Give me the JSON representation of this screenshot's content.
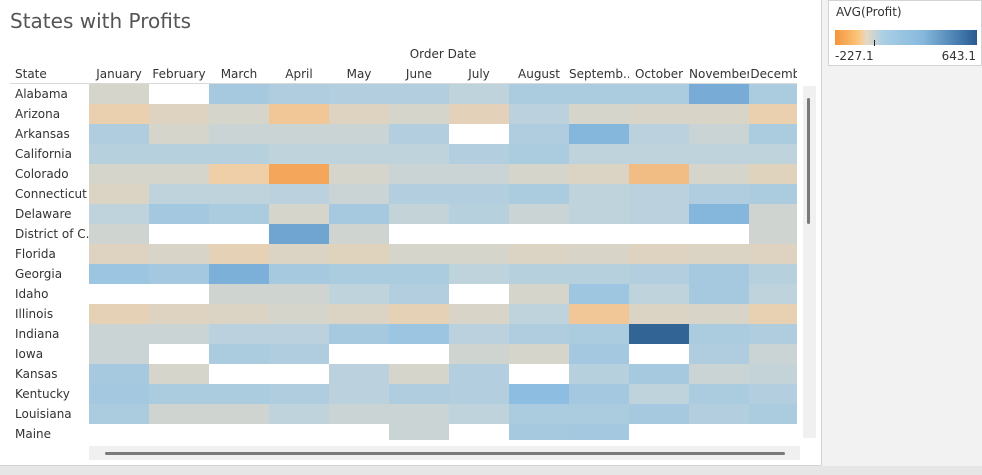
{
  "title": "States with Profits",
  "column_group_label": "Order Date",
  "row_header": "State",
  "legend": {
    "title": "AVG(Profit)",
    "min_label": "-227.1",
    "max_label": "643.1",
    "min": -227.1,
    "max": 643.1,
    "gradient_colors": [
      "#f5943a",
      "#fbc47a",
      "#e8d8c2",
      "#a9cfe6",
      "#86b8dc",
      "#3e75aa",
      "#2a5a8c"
    ]
  },
  "chart_data": {
    "type": "heatmap",
    "title": "States with Profits",
    "x_group_label": "Order Date",
    "y_label": "State",
    "value_label": "AVG(Profit)",
    "color_range": [
      -227.1,
      643.1
    ],
    "months": [
      "January",
      "February",
      "March",
      "April",
      "May",
      "June",
      "July",
      "August",
      "Septemb..",
      "October",
      "November",
      "Decembe"
    ],
    "states": [
      "Alabama",
      "Arizona",
      "Arkansas",
      "California",
      "Colorado",
      "Connecticut",
      "Delaware",
      "District of C..",
      "Florida",
      "Georgia",
      "Idaho",
      "Illinois",
      "Indiana",
      "Iowa",
      "Kansas",
      "Kentucky",
      "Louisiana",
      "Maine"
    ],
    "values": [
      [
        0,
        null,
        100,
        80,
        70,
        70,
        40,
        90,
        90,
        90,
        250,
        90
      ],
      [
        -80,
        -30,
        0,
        -120,
        -30,
        0,
        -50,
        50,
        0,
        -10,
        -10,
        -80
      ],
      [
        80,
        0,
        20,
        20,
        20,
        70,
        null,
        80,
        200,
        50,
        20,
        90
      ],
      [
        60,
        60,
        60,
        40,
        40,
        40,
        70,
        90,
        40,
        40,
        40,
        40
      ],
      [
        0,
        0,
        -100,
        -190,
        0,
        20,
        20,
        0,
        -20,
        -140,
        0,
        -40
      ],
      [
        -20,
        40,
        40,
        50,
        20,
        70,
        70,
        90,
        40,
        50,
        80,
        90
      ],
      [
        40,
        110,
        90,
        0,
        100,
        30,
        60,
        20,
        40,
        50,
        200,
        10
      ],
      [
        10,
        null,
        null,
        280,
        10,
        null,
        null,
        null,
        null,
        null,
        null,
        10
      ],
      [
        -30,
        -10,
        -60,
        -20,
        -40,
        0,
        0,
        -20,
        -10,
        -30,
        -20,
        -30
      ],
      [
        130,
        110,
        230,
        100,
        90,
        90,
        40,
        60,
        60,
        70,
        100,
        60
      ],
      [
        null,
        null,
        10,
        10,
        40,
        70,
        null,
        0,
        120,
        40,
        100,
        40
      ],
      [
        -60,
        -30,
        -20,
        0,
        -20,
        -60,
        -10,
        40,
        -120,
        -20,
        -10,
        -70
      ],
      [
        20,
        20,
        50,
        50,
        100,
        130,
        50,
        80,
        90,
        600,
        90,
        80
      ],
      [
        20,
        null,
        90,
        80,
        null,
        null,
        10,
        0,
        110,
        null,
        80,
        20
      ],
      [
        100,
        0,
        null,
        null,
        50,
        0,
        70,
        null,
        60,
        100,
        20,
        30
      ],
      [
        110,
        90,
        90,
        80,
        50,
        80,
        70,
        170,
        110,
        40,
        90,
        70
      ],
      [
        90,
        10,
        10,
        40,
        20,
        20,
        40,
        90,
        90,
        100,
        70,
        90
      ],
      [
        null,
        null,
        null,
        null,
        null,
        20,
        null,
        100,
        110,
        null,
        null,
        null
      ]
    ]
  }
}
